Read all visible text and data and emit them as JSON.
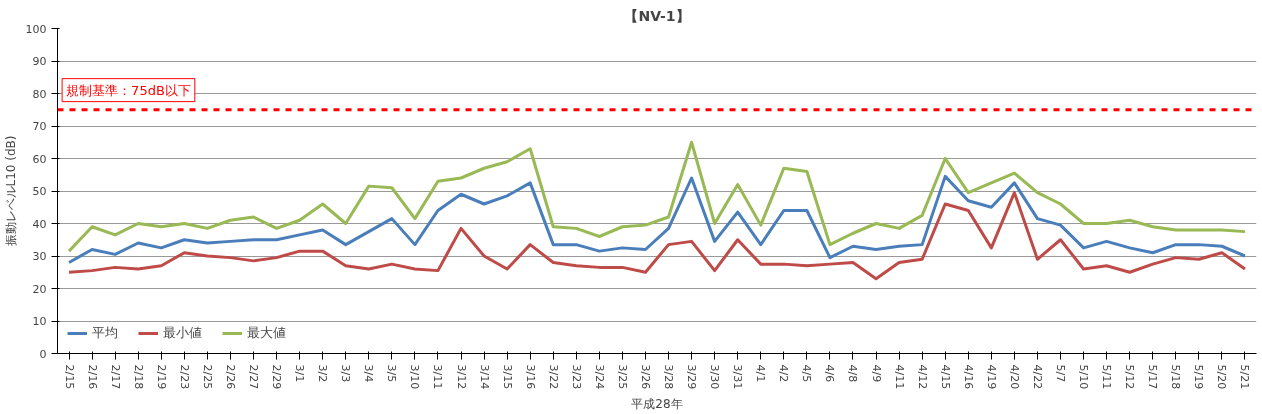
{
  "chart_data": {
    "type": "line",
    "title": "【NV-1】",
    "xlabel": "平成28年",
    "ylabel": "振動レベルL10 (dB)",
    "categories": [
      "2/15",
      "2/16",
      "2/17",
      "2/18",
      "2/19",
      "2/23",
      "2/25",
      "2/26",
      "2/27",
      "2/29",
      "3/1",
      "3/2",
      "3/3",
      "3/4",
      "3/5",
      "3/10",
      "3/11",
      "3/12",
      "3/14",
      "3/15",
      "3/16",
      "3/22",
      "3/23",
      "3/24",
      "3/25",
      "3/26",
      "3/28",
      "3/29",
      "3/30",
      "3/31",
      "4/1",
      "4/2",
      "4/5",
      "4/6",
      "4/8",
      "4/9",
      "4/11",
      "4/12",
      "4/15",
      "4/16",
      "4/19",
      "4/20",
      "4/22",
      "5/7",
      "5/10",
      "5/11",
      "5/12",
      "5/17",
      "5/18",
      "5/19",
      "5/20",
      "5/21"
    ],
    "series": [
      {
        "name": "平均",
        "color": "#4a7ebb",
        "values": [
          28,
          32,
          30.5,
          34,
          32.5,
          35,
          34,
          34.5,
          35,
          35,
          36.5,
          38,
          33.5,
          37.5,
          41.5,
          33.5,
          44,
          49,
          46,
          48.5,
          52.5,
          33.5,
          33.5,
          31.5,
          32.5,
          32,
          38.5,
          54,
          34.5,
          43.5,
          33.5,
          44,
          44,
          29.5,
          33,
          32,
          33,
          33.5,
          54.5,
          47,
          45,
          52.5,
          41.5,
          39.5,
          32.5,
          34.5,
          32.5,
          31,
          33.5,
          33.5,
          33,
          30
        ]
      },
      {
        "name": "最小値",
        "color": "#be4b48",
        "values": [
          25,
          25.5,
          26.5,
          26,
          27,
          31,
          30,
          29.5,
          28.5,
          29.5,
          31.5,
          31.5,
          27,
          26,
          27.5,
          26,
          25.5,
          38.5,
          30,
          26,
          33.5,
          28,
          27,
          26.5,
          26.5,
          25,
          33.5,
          34.5,
          25.5,
          35,
          27.5,
          27.5,
          27,
          27.5,
          28,
          23,
          28,
          29,
          46,
          44,
          32.5,
          49.5,
          29,
          35,
          26,
          27,
          25,
          27.5,
          29.5,
          29,
          31,
          26
        ]
      },
      {
        "name": "最大値",
        "color": "#98b954",
        "values": [
          31.5,
          39,
          36.5,
          40,
          39,
          40,
          38.5,
          41,
          42,
          38.5,
          41,
          46,
          40,
          51.5,
          51,
          41.5,
          53,
          54,
          57,
          59,
          63,
          39,
          38.5,
          36,
          39,
          39.5,
          42,
          65,
          40,
          52,
          39.5,
          57,
          56,
          33.5,
          37,
          40,
          38.5,
          42.5,
          60,
          49.5,
          52.5,
          55.5,
          49.5,
          46,
          40,
          40,
          41,
          39,
          38,
          38,
          38,
          37.5
        ]
      }
    ],
    "ylim": [
      0,
      100
    ],
    "yticks": [
      0,
      10,
      20,
      30,
      40,
      50,
      60,
      70,
      80,
      90,
      100
    ],
    "ref_lines": [
      {
        "axis": "y",
        "value": 75,
        "label": "規制基準：75dB以下",
        "color": "#ff0000",
        "line_style": "dashed"
      }
    ],
    "grid": "y",
    "legend": "bottom left",
    "marker": "none",
    "line_style": "solid"
  }
}
